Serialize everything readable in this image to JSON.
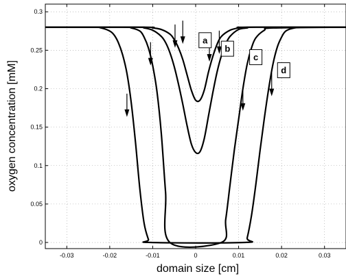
{
  "chart_data": {
    "type": "line",
    "title": "",
    "xlabel": "domain size [cm]",
    "ylabel": "oxygen concentration [mM]",
    "xlim": [
      -0.035,
      0.035
    ],
    "ylim": [
      -0.008,
      0.31
    ],
    "grid": true,
    "xticks": [
      -0.03,
      -0.02,
      -0.01,
      0,
      0.01,
      0.02,
      0.03
    ],
    "xtick_labels": [
      "-0.03",
      "-0.02",
      "-0.01",
      "0",
      "0.01",
      "0.02",
      "0.03"
    ],
    "yticks": [
      0,
      0.05,
      0.1,
      0.15,
      0.2,
      0.25,
      0.3
    ],
    "ytick_labels": [
      "0",
      "0.05",
      "0.1",
      "0.15",
      "0.2",
      "0.25",
      "0.3"
    ],
    "series": [
      {
        "x": [
          -0.035,
          -0.012,
          -0.01,
          -0.008,
          -0.006,
          -0.005,
          -0.004,
          -0.003,
          -0.002,
          -0.001,
          0,
          0.001,
          0.002,
          0.003,
          0.004,
          0.005,
          0.006,
          0.008,
          0.01,
          0.012,
          0.035
        ],
        "y": [
          0.28,
          0.28,
          0.279,
          0.277,
          0.271,
          0.264,
          0.253,
          0.238,
          0.218,
          0.198,
          0.185,
          0.185,
          0.198,
          0.222,
          0.242,
          0.258,
          0.268,
          0.276,
          0.279,
          0.28,
          0.28
        ]
      },
      {
        "x": [
          -0.035,
          -0.014,
          -0.012,
          -0.01,
          -0.008,
          -0.007,
          -0.006,
          -0.005,
          -0.004,
          -0.003,
          -0.002,
          -0.001,
          0,
          0.001,
          0.002,
          0.003,
          0.004,
          0.005,
          0.006,
          0.007,
          0.008,
          0.01,
          0.012,
          0.014,
          0.035
        ],
        "y": [
          0.28,
          0.28,
          0.279,
          0.276,
          0.268,
          0.26,
          0.247,
          0.229,
          0.206,
          0.18,
          0.152,
          0.128,
          0.117,
          0.118,
          0.135,
          0.165,
          0.195,
          0.222,
          0.243,
          0.258,
          0.268,
          0.277,
          0.279,
          0.28,
          0.28
        ]
      },
      {
        "x": [
          -0.035,
          -0.017,
          -0.015,
          -0.013,
          -0.012,
          -0.011,
          -0.01,
          -0.009,
          -0.008,
          -0.007,
          -0.006,
          0.006,
          0.007,
          0.008,
          0.009,
          0.01,
          0.011,
          0.012,
          0.013,
          0.014,
          0.016,
          0.018,
          0.035
        ],
        "y": [
          0.28,
          0.28,
          0.279,
          0.275,
          0.267,
          0.253,
          0.23,
          0.196,
          0.142,
          0.065,
          0,
          0,
          0.03,
          0.075,
          0.12,
          0.16,
          0.2,
          0.232,
          0.253,
          0.266,
          0.276,
          0.279,
          0.28
        ]
      },
      {
        "x": [
          -0.035,
          -0.024,
          -0.022,
          -0.02,
          -0.019,
          -0.018,
          -0.017,
          -0.016,
          -0.015,
          -0.014,
          -0.013,
          -0.012,
          -0.011,
          -0.0105,
          0.0115,
          0.012,
          0.013,
          0.014,
          0.015,
          0.016,
          0.017,
          0.018,
          0.019,
          0.02,
          0.021,
          0.023,
          0.026,
          0.035
        ],
        "y": [
          0.28,
          0.28,
          0.279,
          0.275,
          0.27,
          0.26,
          0.244,
          0.22,
          0.182,
          0.13,
          0.07,
          0.025,
          0.004,
          0,
          0,
          0.006,
          0.035,
          0.075,
          0.12,
          0.162,
          0.2,
          0.232,
          0.254,
          0.267,
          0.275,
          0.279,
          0.28,
          0.28
        ]
      }
    ],
    "arrows": [
      {
        "x": -0.016,
        "y": 0.165
      },
      {
        "x": -0.0105,
        "y": 0.232
      },
      {
        "x": -0.0048,
        "y": 0.255
      },
      {
        "x": -0.003,
        "y": 0.26
      },
      {
        "x": 0.0032,
        "y": 0.237
      },
      {
        "x": 0.0055,
        "y": 0.247
      },
      {
        "x": 0.011,
        "y": 0.173
      },
      {
        "x": 0.0177,
        "y": 0.192
      }
    ],
    "annotations": [
      {
        "text": "a",
        "x": 0.0022,
        "y": 0.263
      },
      {
        "text": "b",
        "x": 0.0074,
        "y": 0.252
      },
      {
        "text": "c",
        "x": 0.014,
        "y": 0.241
      },
      {
        "text": "d",
        "x": 0.0205,
        "y": 0.224
      }
    ]
  }
}
